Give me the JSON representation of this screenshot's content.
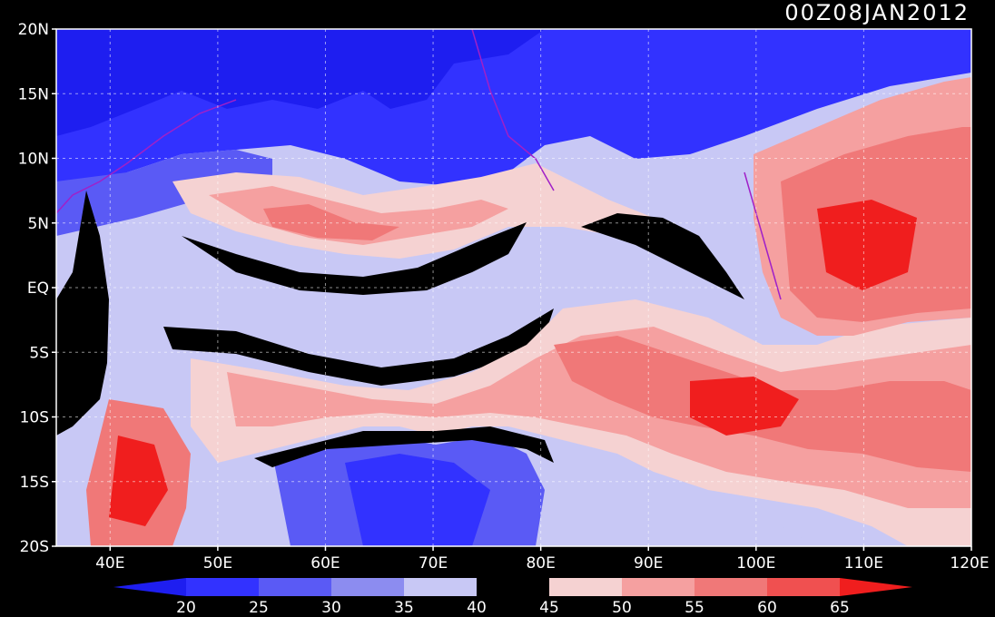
{
  "title": "00Z08JAN2012",
  "map": {
    "lon_range": [
      35,
      120
    ],
    "lat_range": [
      -20,
      20
    ],
    "lon_ticks": [
      {
        "value": 40,
        "label": "40E"
      },
      {
        "value": 50,
        "label": "50E"
      },
      {
        "value": 60,
        "label": "60E"
      },
      {
        "value": 70,
        "label": "70E"
      },
      {
        "value": 80,
        "label": "80E"
      },
      {
        "value": 90,
        "label": "90E"
      },
      {
        "value": 100,
        "label": "100E"
      },
      {
        "value": 110,
        "label": "110E"
      },
      {
        "value": 120,
        "label": "120E"
      }
    ],
    "lat_ticks": [
      {
        "value": 20,
        "label": "20N"
      },
      {
        "value": 15,
        "label": "15N"
      },
      {
        "value": 10,
        "label": "10N"
      },
      {
        "value": 5,
        "label": "5N"
      },
      {
        "value": 0,
        "label": "EQ"
      },
      {
        "value": -5,
        "label": "5S"
      },
      {
        "value": -10,
        "label": "10S"
      },
      {
        "value": -15,
        "label": "15S"
      },
      {
        "value": -20,
        "label": "20S"
      }
    ],
    "gridlines": true,
    "coastline_color": "#a020c8"
  },
  "colorbar": {
    "labels": [
      "20",
      "25",
      "30",
      "35",
      "40",
      "45",
      "50",
      "55",
      "60",
      "65"
    ],
    "colors": [
      "#1e1ef0",
      "#3232ff",
      "#5a5af5",
      "#8c8cf0",
      "#c8c8f5",
      "#000000",
      "#f5d2d2",
      "#f5a0a0",
      "#f07878",
      "#f05050",
      "#f01e1e"
    ],
    "extend": "both"
  }
}
